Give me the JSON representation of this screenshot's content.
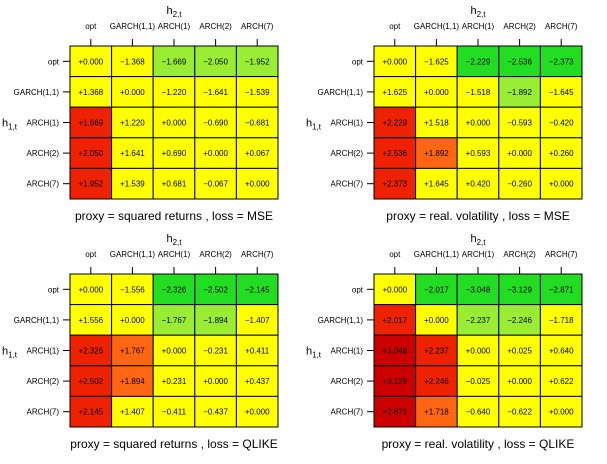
{
  "labels": [
    "opt",
    "GARCH(1,1)",
    "ARCH(1)",
    "ARCH(2)",
    "ARCH(7)"
  ],
  "col_label_main": "h",
  "col_label_sub": "2,t",
  "row_label_main": "h",
  "row_label_sub": "1,t",
  "colors": {
    "neutral": "#ffff00",
    "negative_strong": "#22dd22",
    "negative_mid": "#99ee33",
    "positive_mid": "#ff6611",
    "positive_strong": "#ee2200",
    "positive_max": "#cc0000",
    "border": "#000000"
  },
  "chart_data": [
    {
      "type": "heatmap",
      "caption": "proxy = squared returns , loss = MSE",
      "cells": [
        [
          "+0.000",
          "−1.368",
          "−1.669",
          "−2.050",
          "−1.952"
        ],
        [
          "+1.368",
          "+0.000",
          "−1.220",
          "−1.641",
          "−1.539"
        ],
        [
          "+1.669",
          "+1.220",
          "+0.000",
          "−0.690",
          "−0.681"
        ],
        [
          "+2.050",
          "+1.641",
          "+0.690",
          "+0.000",
          "+0.067"
        ],
        [
          "+1.952",
          "+1.539",
          "+0.681",
          "−0.067",
          "+0.000"
        ]
      ],
      "cell_colors": [
        [
          "neutral",
          "neutral",
          "negative_mid",
          "negative_mid",
          "negative_mid"
        ],
        [
          "neutral",
          "neutral",
          "neutral",
          "neutral",
          "neutral"
        ],
        [
          "positive_strong",
          "neutral",
          "neutral",
          "neutral",
          "neutral"
        ],
        [
          "positive_strong",
          "neutral",
          "neutral",
          "neutral",
          "neutral"
        ],
        [
          "positive_strong",
          "neutral",
          "neutral",
          "neutral",
          "neutral"
        ]
      ]
    },
    {
      "type": "heatmap",
      "caption": "proxy = real. volatility , loss = MSE",
      "cells": [
        [
          "+0.000",
          "−1.625",
          "−2.229",
          "−2.536",
          "−2.373"
        ],
        [
          "+1.625",
          "+0.000",
          "−1.518",
          "−1.892",
          "−1.645"
        ],
        [
          "+2.229",
          "+1.518",
          "+0.000",
          "−0.593",
          "−0.420"
        ],
        [
          "+2.536",
          "+1.892",
          "+0.593",
          "+0.000",
          "+0.260"
        ],
        [
          "+2.373",
          "+1.645",
          "+0.420",
          "−0.260",
          "+0.000"
        ]
      ],
      "cell_colors": [
        [
          "neutral",
          "neutral",
          "negative_strong",
          "negative_strong",
          "negative_strong"
        ],
        [
          "neutral",
          "neutral",
          "neutral",
          "negative_mid",
          "neutral"
        ],
        [
          "positive_strong",
          "neutral",
          "neutral",
          "neutral",
          "neutral"
        ],
        [
          "positive_strong",
          "positive_mid",
          "neutral",
          "neutral",
          "neutral"
        ],
        [
          "positive_strong",
          "neutral",
          "neutral",
          "neutral",
          "neutral"
        ]
      ]
    },
    {
      "type": "heatmap",
      "caption": "proxy = squared returns , loss = QLIKE",
      "cells": [
        [
          "+0.000",
          "−1.556",
          "−2.326",
          "−2.502",
          "−2.145"
        ],
        [
          "+1.556",
          "+0.000",
          "−1.767",
          "−1.894",
          "−1.407"
        ],
        [
          "+2.326",
          "+1.767",
          "+0.000",
          "−0.231",
          "+0.411"
        ],
        [
          "+2.502",
          "+1.894",
          "+0.231",
          "+0.000",
          "+0.437"
        ],
        [
          "+2.145",
          "+1.407",
          "−0.411",
          "−0.437",
          "+0.000"
        ]
      ],
      "cell_colors": [
        [
          "neutral",
          "neutral",
          "negative_strong",
          "negative_strong",
          "negative_strong"
        ],
        [
          "neutral",
          "neutral",
          "negative_mid",
          "negative_mid",
          "neutral"
        ],
        [
          "positive_strong",
          "positive_mid",
          "neutral",
          "neutral",
          "neutral"
        ],
        [
          "positive_strong",
          "positive_mid",
          "neutral",
          "neutral",
          "neutral"
        ],
        [
          "positive_strong",
          "neutral",
          "neutral",
          "neutral",
          "neutral"
        ]
      ]
    },
    {
      "type": "heatmap",
      "caption": "proxy = real. volatility , loss = QLIKE",
      "cells": [
        [
          "+0.000",
          "−2.017",
          "−3.048",
          "−3.129",
          "−2.871"
        ],
        [
          "+2.017",
          "+0.000",
          "−2.237",
          "−2.246",
          "−1.718"
        ],
        [
          "+3.048",
          "+2.237",
          "+0.000",
          "+0.025",
          "+0.640"
        ],
        [
          "+3.129",
          "+2.246",
          "−0.025",
          "+0.000",
          "+0.622"
        ],
        [
          "+2.871",
          "+1.718",
          "−0.640",
          "−0.622",
          "+0.000"
        ]
      ],
      "cell_colors": [
        [
          "neutral",
          "negative_strong",
          "negative_strong",
          "negative_strong",
          "negative_strong"
        ],
        [
          "positive_strong",
          "neutral",
          "negative_mid",
          "negative_mid",
          "neutral"
        ],
        [
          "positive_max",
          "positive_strong",
          "neutral",
          "neutral",
          "neutral"
        ],
        [
          "positive_max",
          "positive_strong",
          "neutral",
          "neutral",
          "neutral"
        ],
        [
          "positive_max",
          "positive_mid",
          "neutral",
          "neutral",
          "neutral"
        ]
      ]
    }
  ]
}
